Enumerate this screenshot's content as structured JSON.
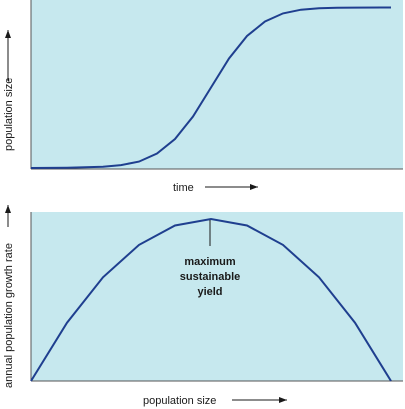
{
  "chart_data": [
    {
      "type": "line",
      "xlabel": "time",
      "ylabel": "population size",
      "xlim": [
        0,
        100
      ],
      "ylim": [
        0,
        100
      ],
      "grid": false,
      "background": "#c6e8ee",
      "line_color": "#1f3f8f",
      "series": [
        {
          "x": [
            0,
            10,
            20,
            25,
            30,
            35,
            40,
            45,
            50,
            55,
            60,
            65,
            70,
            75,
            80,
            85,
            90,
            100
          ],
          "values": [
            0,
            0.2,
            0.8,
            1.8,
            4,
            9,
            18,
            32,
            50,
            68,
            82,
            91,
            96,
            98.3,
            99.2,
            99.5,
            99.6,
            99.7
          ]
        }
      ]
    },
    {
      "type": "line",
      "xlabel": "population size",
      "ylabel": "annual population growth rate",
      "xlim": [
        0,
        100
      ],
      "ylim": [
        0,
        100
      ],
      "grid": false,
      "background": "#c6e8ee",
      "line_color": "#1f3f8f",
      "series": [
        {
          "x": [
            0,
            10,
            20,
            30,
            40,
            50,
            60,
            70,
            80,
            90,
            100
          ],
          "values": [
            0,
            36,
            64,
            84,
            96,
            100,
            96,
            84,
            64,
            36,
            0
          ]
        }
      ],
      "annotations": [
        {
          "text": [
            "maximum",
            "sustainable",
            "yield"
          ],
          "x": 50,
          "y": 100
        }
      ]
    }
  ]
}
